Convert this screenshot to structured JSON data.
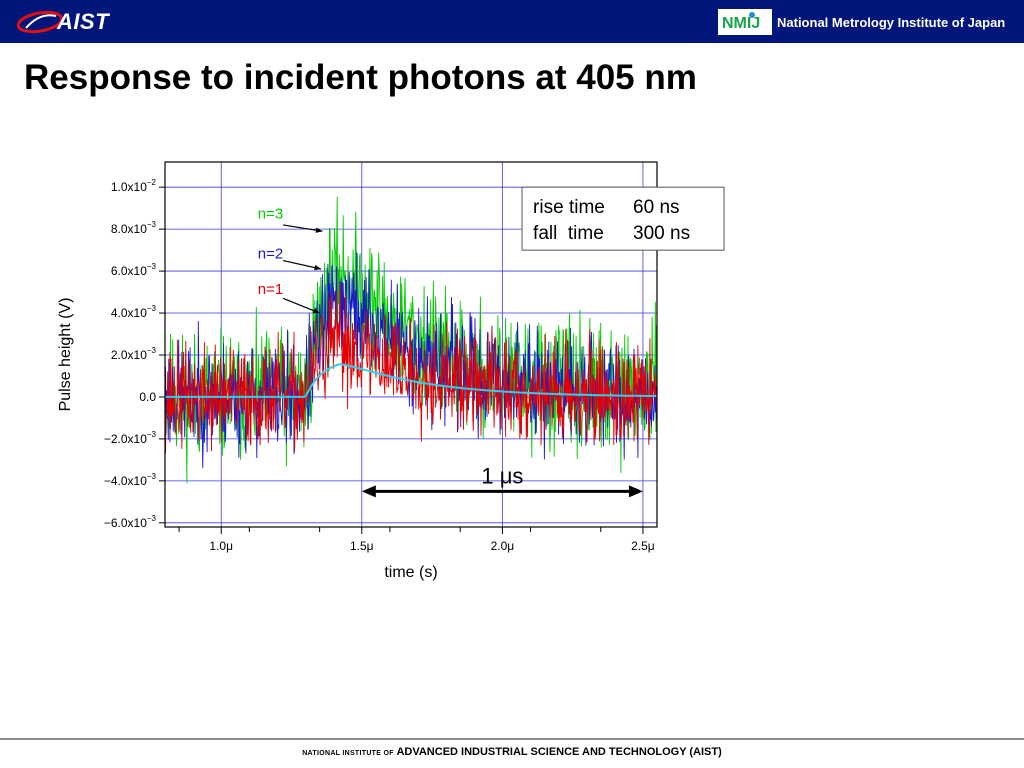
{
  "header": {
    "logo_text": "AIST",
    "nmij_logo_text": "NMIJ",
    "org_name": "National Metrology Institute of Japan",
    "background_color": "#00167a"
  },
  "slide": {
    "title": "Response to incident photons at 405 nm"
  },
  "chart_data": {
    "type": "line",
    "xlabel": "time (s)",
    "ylabel": "Pulse height (V)",
    "xlim": [
      0.8,
      2.55
    ],
    "ylim": [
      -0.0062,
      0.0112
    ],
    "x_ticks": [
      {
        "value": 1.0,
        "label": "1.0μ"
      },
      {
        "value": 1.5,
        "label": "1.5μ"
      },
      {
        "value": 2.0,
        "label": "2.0μ"
      },
      {
        "value": 2.5,
        "label": "2.5μ"
      }
    ],
    "y_ticks": [
      {
        "value": 0.01,
        "mant": "1.0x10",
        "exp": "−2"
      },
      {
        "value": 0.008,
        "mant": "8.0x10",
        "exp": "−3"
      },
      {
        "value": 0.006,
        "mant": "6.0x10",
        "exp": "−3"
      },
      {
        "value": 0.004,
        "mant": "4.0x10",
        "exp": "−3"
      },
      {
        "value": 0.002,
        "mant": "2.0x10",
        "exp": "−3"
      },
      {
        "value": 0.0,
        "mant": "0.0",
        "exp": ""
      },
      {
        "value": -0.002,
        "mant": "−2.0x10",
        "exp": "−3"
      },
      {
        "value": -0.004,
        "mant": "−4.0x10",
        "exp": "−3"
      },
      {
        "value": -0.006,
        "mant": "−6.0x10",
        "exp": "−3"
      }
    ],
    "grid": true,
    "pulse_model": {
      "onset": 1.3,
      "rise_time": 0.06,
      "fall_time": 0.3,
      "peak_time": 1.42
    },
    "series": [
      {
        "name": "n=3",
        "color": "#00cc00",
        "amplitude": 0.0068,
        "noise": 0.0015,
        "seed": 11
      },
      {
        "name": "n=2",
        "color": "#1a1acc",
        "amplitude": 0.0052,
        "noise": 0.0013,
        "seed": 23
      },
      {
        "name": "n=1",
        "color": "#e60000",
        "amplitude": 0.003,
        "noise": 0.0012,
        "seed": 37
      },
      {
        "name": "average",
        "color": "#33ccee",
        "amplitude": 0.0018,
        "noise": 0.0,
        "seed": 0
      }
    ],
    "annotations": [
      {
        "label": "n=3",
        "color": "#00cc00",
        "tx": 1.13,
        "ty": 0.0085,
        "ax": 1.22,
        "ay": 0.0082,
        "bx": 1.36,
        "by": 0.0079
      },
      {
        "label": "n=2",
        "color": "#1a1acc",
        "tx": 1.13,
        "ty": 0.0066,
        "ax": 1.22,
        "ay": 0.0065,
        "bx": 1.355,
        "by": 0.0061
      },
      {
        "label": "n=1",
        "color": "#e60000",
        "tx": 1.13,
        "ty": 0.0049,
        "ax": 1.22,
        "ay": 0.0047,
        "bx": 1.35,
        "by": 0.004
      }
    ],
    "info_box": {
      "line1_label": "rise time",
      "line1_value": "60 ns",
      "line2_label": "fall  time",
      "line2_value": "300 ns"
    },
    "scale_bar": {
      "label": "1 μs",
      "x_start": 1.5,
      "x_end": 2.5,
      "y": -0.0045
    }
  },
  "footer": {
    "small_text": "NATIONAL INSTITUTE OF",
    "main_text": "ADVANCED INDUSTRIAL SCIENCE AND TECHNOLOGY (AIST)"
  }
}
